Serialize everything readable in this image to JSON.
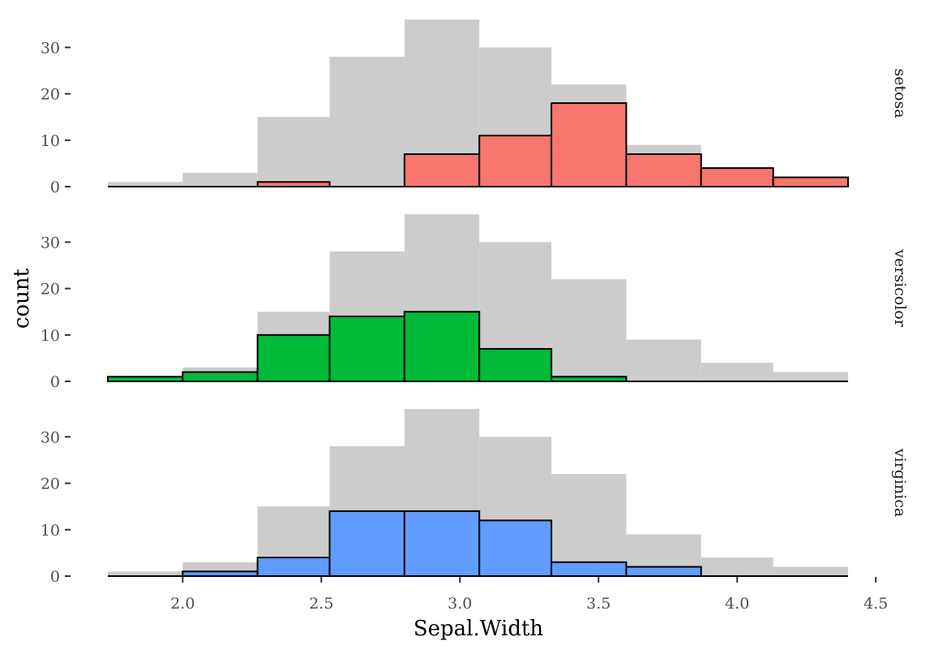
{
  "chart_data": {
    "type": "bar",
    "xlabel": "Sepal.Width",
    "ylabel": "count",
    "xlim": [
      1.73,
      4.4
    ],
    "ylim": [
      0,
      36
    ],
    "x_ticks": [
      2.0,
      2.5,
      3.0,
      3.5,
      4.0,
      4.5
    ],
    "x_tick_labels": [
      "2.0",
      "2.5",
      "3.0",
      "3.5",
      "4.0",
      "4.5"
    ],
    "y_ticks": [
      0,
      10,
      20,
      30
    ],
    "y_tick_labels": [
      "0",
      "10",
      "20",
      "30"
    ],
    "bin_edges": [
      1.73,
      2.0,
      2.27,
      2.53,
      2.8,
      3.07,
      3.33,
      3.6,
      3.87,
      4.13,
      4.4
    ],
    "background_series": {
      "values": [
        1,
        3,
        15,
        28,
        36,
        30,
        22,
        9,
        4,
        2
      ],
      "color": "#cccccc"
    },
    "panels": [
      {
        "label": "setosa",
        "color": "#f8766d",
        "values": [
          0,
          0,
          1,
          0,
          7,
          11,
          18,
          7,
          4,
          2
        ]
      },
      {
        "label": "versicolor",
        "color": "#00ba38",
        "values": [
          1,
          2,
          10,
          14,
          15,
          7,
          1,
          0,
          0,
          0
        ]
      },
      {
        "label": "virginica",
        "color": "#619cff",
        "values": [
          0,
          1,
          4,
          14,
          14,
          12,
          3,
          2,
          0,
          0
        ]
      }
    ],
    "grid": false,
    "legend": "none"
  }
}
